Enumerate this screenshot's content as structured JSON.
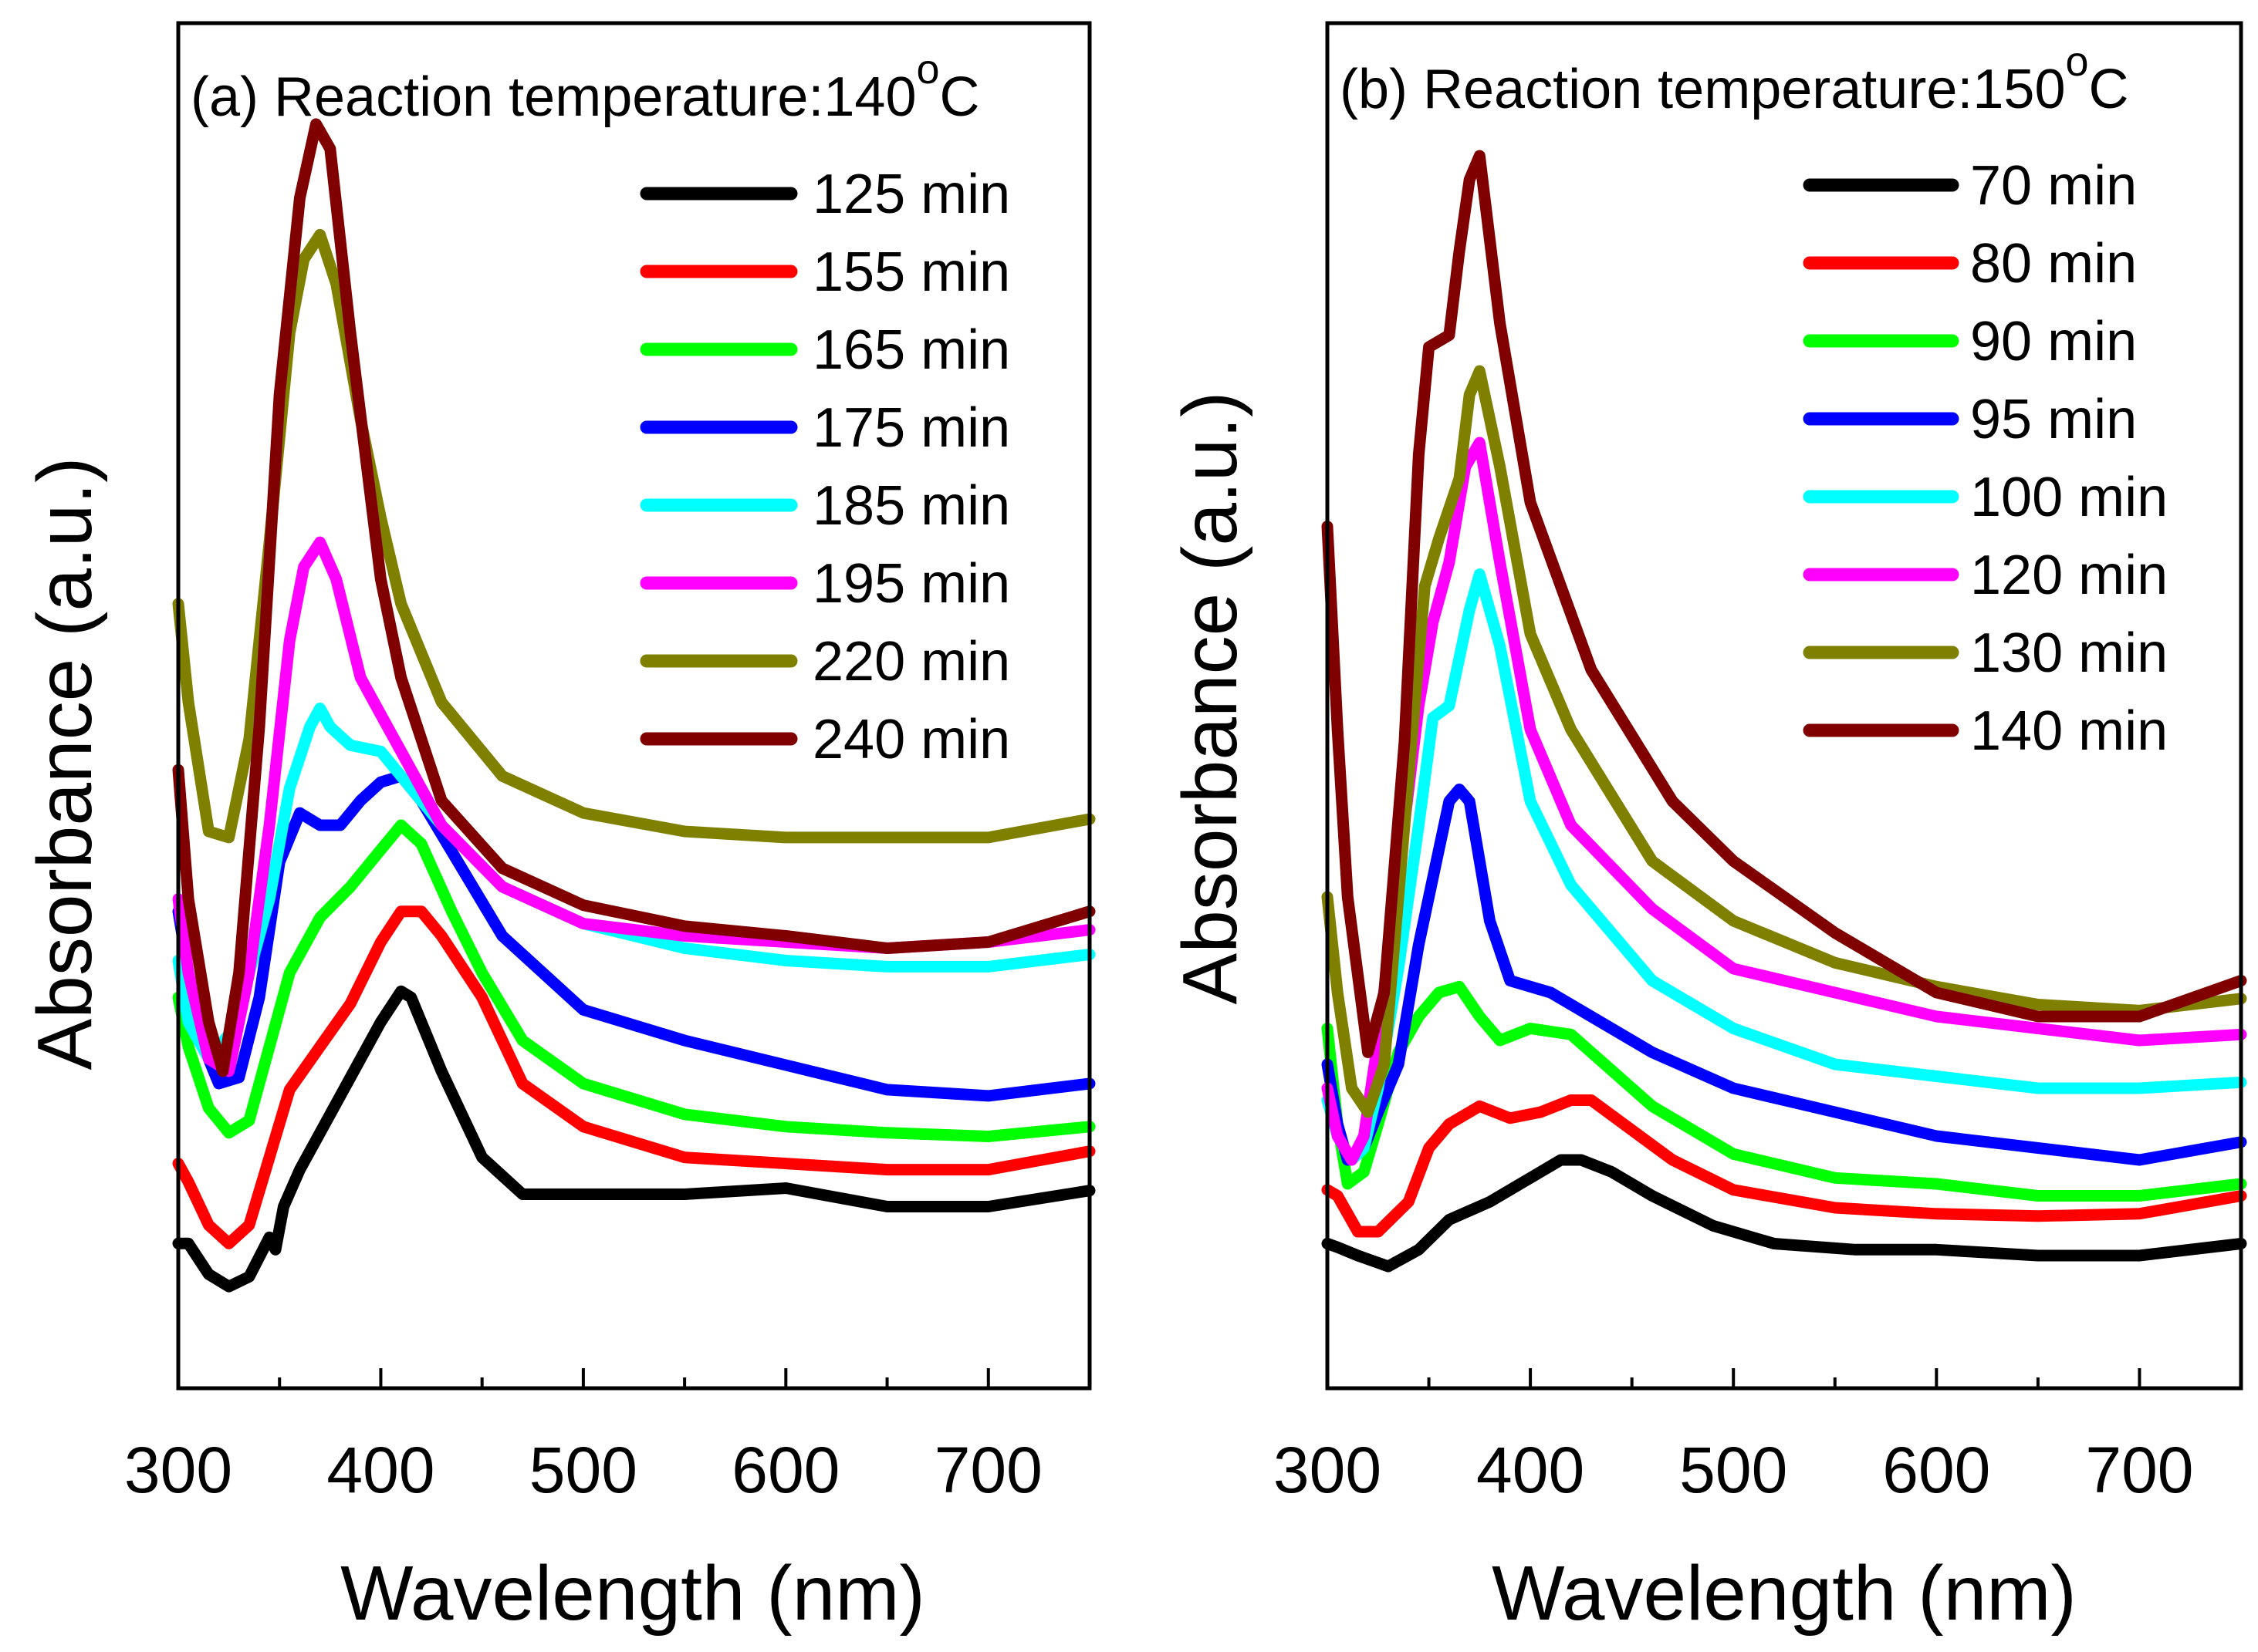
{
  "chart_data": [
    {
      "type": "line",
      "title": "(a) Reaction temperature:140",
      "title_superscript": "o",
      "title_suffix": "C",
      "xlabel": "Wavelength (nm)",
      "ylabel": "Absorbance (a.u.)",
      "xlim": [
        300,
        750
      ],
      "ylim": [
        0,
        100
      ],
      "xticks": [
        300,
        400,
        500,
        600,
        700
      ],
      "grid": false,
      "legend_position": "top-right",
      "series": [
        {
          "name": "125 min",
          "color": "#000000",
          "x": [
            300,
            305,
            315,
            325,
            335,
            345,
            348,
            352,
            360,
            380,
            400,
            410,
            415,
            430,
            450,
            470,
            500,
            550,
            600,
            650,
            700,
            750
          ],
          "y": [
            6,
            6,
            3.5,
            2.5,
            3.3,
            6.5,
            5.5,
            9,
            12,
            18,
            24,
            26.5,
            26,
            20,
            13,
            10,
            10,
            10,
            10.5,
            9,
            9,
            10.3
          ]
        },
        {
          "name": "155 min",
          "color": "#ff0000",
          "x": [
            300,
            305,
            315,
            325,
            335,
            345,
            355,
            370,
            385,
            400,
            410,
            420,
            430,
            450,
            470,
            500,
            550,
            600,
            650,
            700,
            750
          ],
          "y": [
            12.5,
            11,
            7.5,
            6,
            7.5,
            13,
            18.5,
            22,
            25.5,
            30.5,
            33,
            33,
            31,
            26,
            19,
            15.5,
            13,
            12.5,
            12,
            12,
            13.5
          ]
        },
        {
          "name": "165 min",
          "color": "#00ff00",
          "x": [
            300,
            305,
            315,
            325,
            335,
            345,
            355,
            370,
            385,
            400,
            410,
            420,
            435,
            450,
            470,
            500,
            550,
            600,
            650,
            700,
            750
          ],
          "y": [
            26,
            22,
            17,
            15,
            16,
            22,
            28,
            32.5,
            35,
            38,
            40,
            38.5,
            33,
            28,
            22.5,
            19,
            16.5,
            15.5,
            15,
            14.7,
            15.5
          ]
        },
        {
          "name": "175 min",
          "color": "#0000ff",
          "x": [
            300,
            305,
            310,
            320,
            330,
            340,
            350,
            360,
            370,
            380,
            390,
            400,
            410,
            420,
            440,
            460,
            500,
            550,
            600,
            650,
            700,
            750
          ],
          "y": [
            33,
            28,
            23,
            19,
            19.5,
            26,
            37,
            41,
            40,
            40,
            42,
            43.5,
            44,
            42,
            36.5,
            31,
            25,
            22.5,
            20.5,
            18.5,
            18,
            19
          ]
        },
        {
          "name": "185 min",
          "color": "#00ffff",
          "x": [
            300,
            305,
            315,
            325,
            335,
            345,
            355,
            365,
            370,
            375,
            385,
            400,
            410,
            430,
            460,
            500,
            550,
            600,
            650,
            700,
            750
          ],
          "y": [
            29,
            24,
            21,
            23,
            28,
            34,
            43,
            48,
            49.5,
            48,
            46.5,
            46,
            44,
            40,
            35,
            32,
            30,
            29,
            28.5,
            28.5,
            29.5
          ]
        },
        {
          "name": "195 min",
          "color": "#ff00ff",
          "x": [
            300,
            305,
            315,
            325,
            335,
            345,
            355,
            362,
            370,
            378,
            390,
            400,
            410,
            430,
            460,
            500,
            550,
            600,
            650,
            700,
            750
          ],
          "y": [
            34,
            28,
            21,
            20,
            28,
            40,
            55,
            61,
            63,
            60,
            52,
            49,
            46,
            40,
            35,
            32,
            31,
            30.5,
            30,
            30.5,
            31.5
          ]
        },
        {
          "name": "220 min",
          "color": "#808000",
          "x": [
            300,
            305,
            315,
            325,
            335,
            345,
            355,
            362,
            370,
            378,
            390,
            400,
            410,
            430,
            460,
            500,
            550,
            600,
            650,
            700,
            750
          ],
          "y": [
            58,
            50,
            39.5,
            39,
            47,
            63,
            80,
            86,
            88,
            84,
            73,
            65,
            58,
            50,
            44,
            41,
            39.5,
            39,
            39,
            39,
            40.5
          ]
        },
        {
          "name": "240 min",
          "color": "#800000",
          "x": [
            300,
            305,
            315,
            322,
            330,
            340,
            350,
            360,
            368,
            375,
            385,
            400,
            410,
            430,
            460,
            500,
            550,
            600,
            650,
            700,
            750
          ],
          "y": [
            44.5,
            34,
            24,
            20,
            28,
            48,
            75,
            91,
            97,
            95,
            80,
            60,
            52,
            42,
            36.5,
            33.5,
            31.8,
            31,
            30,
            30.5,
            33
          ]
        }
      ]
    },
    {
      "type": "line",
      "title": "(b) Reaction temperature:150",
      "title_superscript": "o",
      "title_suffix": "C",
      "xlabel": "Wavelength (nm)",
      "ylabel": "Absorbance (a.u.)",
      "xlim": [
        300,
        750
      ],
      "ylim": [
        0,
        100
      ],
      "xticks": [
        300,
        400,
        500,
        600,
        700
      ],
      "grid": false,
      "legend_position": "top-right",
      "series": [
        {
          "name": "70 min",
          "color": "#000000",
          "x": [
            300,
            305,
            315,
            330,
            345,
            360,
            380,
            400,
            415,
            425,
            440,
            460,
            490,
            520,
            560,
            600,
            650,
            700,
            750
          ],
          "y": [
            5,
            4.7,
            4,
            3.1,
            4.5,
            7,
            8.5,
            10.5,
            12,
            12,
            11,
            9,
            6.5,
            5,
            4.5,
            4.5,
            4,
            4,
            5
          ]
        },
        {
          "name": "80 min",
          "color": "#ff0000",
          "x": [
            300,
            305,
            315,
            325,
            340,
            350,
            360,
            375,
            390,
            405,
            420,
            430,
            450,
            470,
            500,
            550,
            600,
            650,
            700,
            750
          ],
          "y": [
            9.5,
            9,
            6,
            6,
            8.5,
            13,
            15,
            16.5,
            15.5,
            16,
            17,
            17,
            14.5,
            12,
            9.5,
            8,
            7.5,
            7.3,
            7.5,
            9
          ]
        },
        {
          "name": "90 min",
          "color": "#00ff00",
          "x": [
            300,
            305,
            310,
            318,
            325,
            335,
            345,
            355,
            365,
            375,
            385,
            400,
            420,
            440,
            460,
            500,
            550,
            600,
            650,
            700,
            750
          ],
          "y": [
            23,
            15,
            10,
            11,
            15,
            21,
            24,
            26,
            26.5,
            24,
            22,
            23,
            22.5,
            19.5,
            16.5,
            12.5,
            10.5,
            10,
            9,
            9,
            10
          ]
        },
        {
          "name": "95 min",
          "color": "#0000ff",
          "x": [
            300,
            305,
            310,
            318,
            325,
            335,
            345,
            355,
            360,
            365,
            370,
            380,
            390,
            410,
            430,
            460,
            500,
            550,
            600,
            650,
            700,
            750
          ],
          "y": [
            20,
            15,
            12,
            13,
            16,
            20,
            30,
            38,
            42,
            43,
            42,
            32,
            27,
            26,
            24,
            21,
            18,
            16,
            14,
            13,
            12,
            13.5
          ]
        },
        {
          "name": "100 min",
          "color": "#00ffff",
          "x": [
            300,
            305,
            312,
            318,
            325,
            335,
            345,
            352,
            360,
            370,
            375,
            385,
            400,
            420,
            460,
            500,
            550,
            600,
            650,
            700,
            750
          ],
          "y": [
            17,
            14,
            12,
            13,
            18,
            28,
            40,
            49,
            50,
            58,
            61,
            55,
            42,
            35,
            27,
            23,
            20,
            19,
            18,
            18,
            18.5
          ]
        },
        {
          "name": "120 min",
          "color": "#ff00ff",
          "x": [
            300,
            305,
            312,
            318,
            325,
            335,
            345,
            352,
            360,
            368,
            375,
            385,
            400,
            420,
            460,
            500,
            550,
            600,
            650,
            700,
            750
          ],
          "y": [
            18,
            14,
            12,
            14,
            22,
            36,
            50,
            57,
            62,
            70,
            72,
            62,
            48,
            40,
            33,
            28,
            26,
            24,
            23,
            22,
            22.5
          ]
        },
        {
          "name": "130 min",
          "color": "#808000",
          "x": [
            300,
            305,
            312,
            320,
            328,
            338,
            348,
            355,
            365,
            370,
            375,
            385,
            400,
            420,
            460,
            500,
            550,
            600,
            650,
            700,
            750
          ],
          "y": [
            34,
            26,
            18,
            16,
            20,
            40,
            60,
            64,
            69,
            76,
            78,
            70,
            56,
            48,
            37,
            32,
            28.5,
            26.5,
            25,
            24.5,
            25.5
          ]
        },
        {
          "name": "140 min",
          "color": "#800000",
          "x": [
            300,
            305,
            310,
            320,
            328,
            338,
            345,
            350,
            360,
            365,
            370,
            375,
            385,
            400,
            430,
            470,
            500,
            550,
            560,
            600,
            650,
            700,
            750
          ],
          "y": [
            65,
            48,
            34,
            21,
            26,
            47,
            71,
            80,
            81,
            88,
            94,
            96,
            82,
            67,
            53,
            42,
            37,
            31,
            30,
            26,
            24,
            24,
            27
          ]
        }
      ]
    }
  ]
}
